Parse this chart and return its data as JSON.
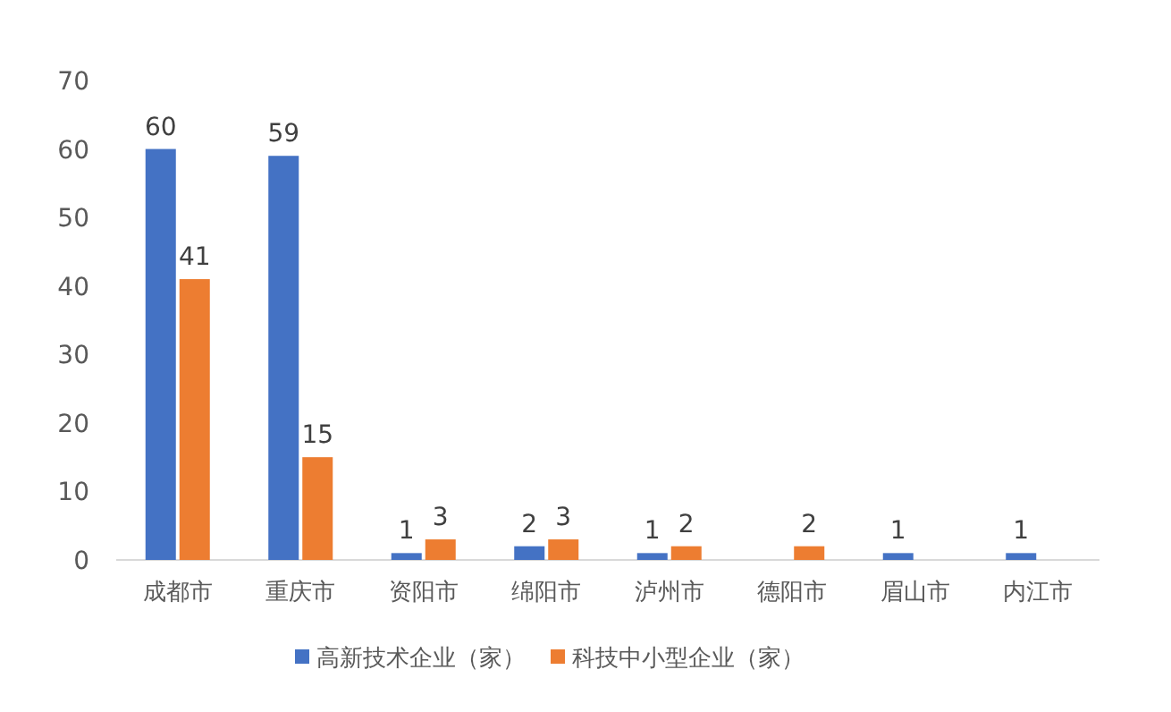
{
  "chart_data": {
    "type": "bar",
    "categories": [
      "成都市",
      "重庆市",
      "资阳市",
      "绵阳市",
      "泸州市",
      "德阳市",
      "眉山市",
      "内江市"
    ],
    "series": [
      {
        "name": "高新技术企业（家）",
        "color": "#4472c4",
        "values": [
          60,
          59,
          1,
          2,
          1,
          null,
          1,
          1
        ]
      },
      {
        "name": "科技中小型企业（家）",
        "color": "#ed7d31",
        "values": [
          41,
          15,
          3,
          3,
          2,
          2,
          null,
          null
        ]
      }
    ],
    "ylim": [
      0,
      70
    ],
    "yticks": [
      0,
      10,
      20,
      30,
      40,
      50,
      60,
      70
    ],
    "grid": false,
    "legend": "bottom",
    "data_labels": true
  }
}
